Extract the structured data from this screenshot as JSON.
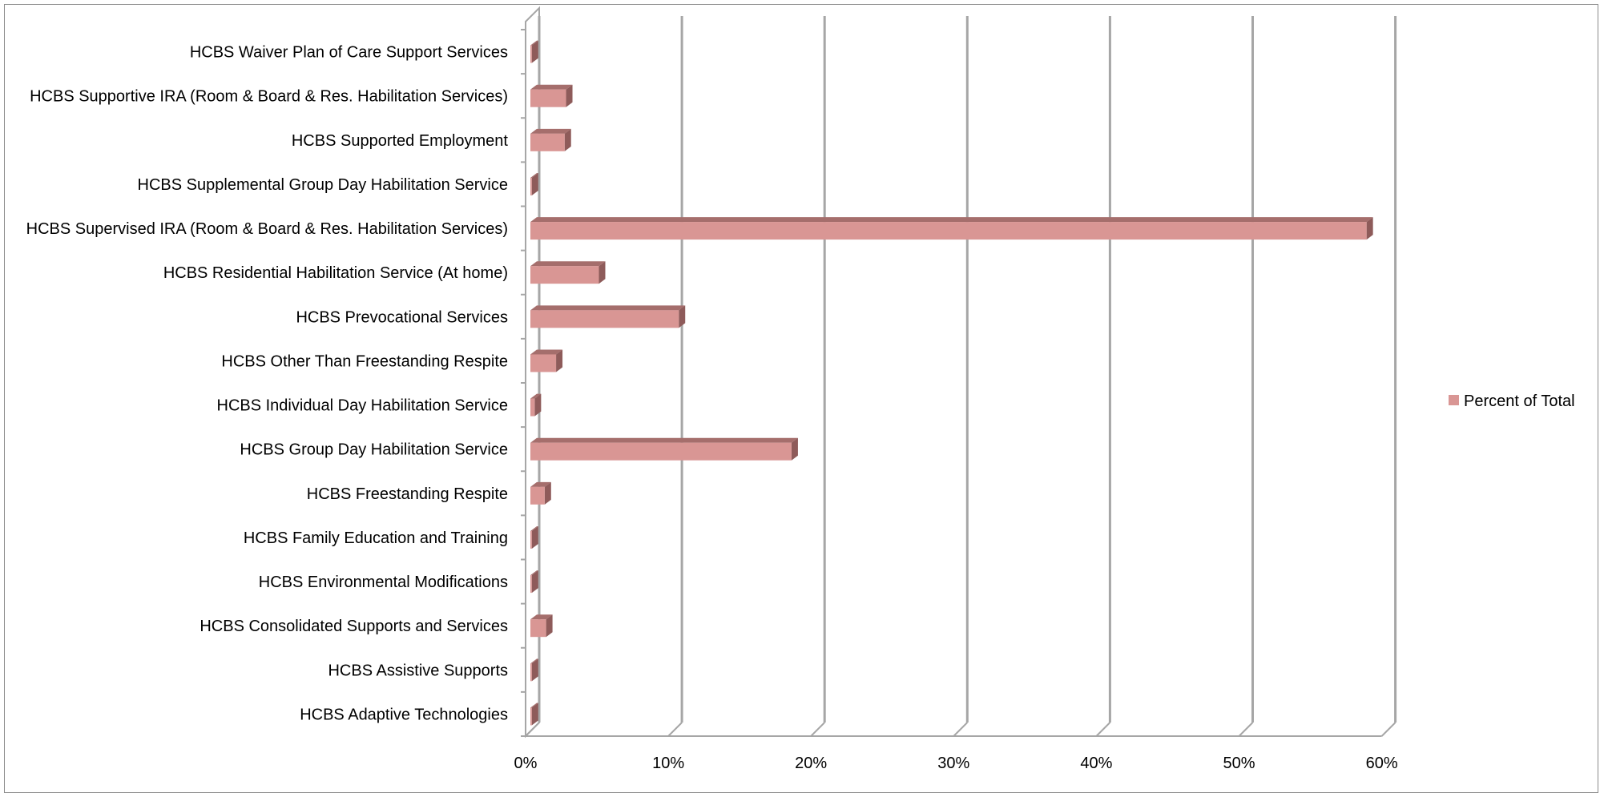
{
  "chart_data": {
    "type": "bar",
    "orientation": "horizontal",
    "style": "3d",
    "categories": [
      "HCBS Waiver Plan of Care Support Services",
      "HCBS Supportive IRA (Room & Board & Res. Habilitation Services)",
      "HCBS Supported Employment",
      "HCBS Supplemental Group Day Habilitation Service",
      "HCBS Supervised IRA (Room & Board & Res. Habilitation Services)",
      "HCBS Residential Habilitation Service (At home)",
      "HCBS Prevocational Services",
      "HCBS Other Than Freestanding Respite",
      "HCBS Individual Day Habilitation Service",
      "HCBS Group Day Habilitation Service",
      "HCBS Freestanding Respite",
      "HCBS Family Education and Training",
      "HCBS Environmental Modifications",
      "HCBS Consolidated Supports and Services",
      "HCBS Assistive Supports",
      "HCBS Adaptive Technologies"
    ],
    "series": [
      {
        "name": "Percent of Total",
        "values": [
          0.1,
          2.5,
          2.4,
          0.1,
          58.6,
          4.8,
          10.4,
          1.8,
          0.3,
          18.3,
          1.0,
          0.1,
          0.1,
          1.1,
          0.1,
          0.1
        ]
      }
    ],
    "x_ticks": [
      "0%",
      "10%",
      "20%",
      "30%",
      "40%",
      "50%",
      "60%"
    ],
    "xlim": [
      0,
      60
    ],
    "grid": "vertical",
    "legend_position": "right",
    "colors": {
      "bar_front": "#d99694",
      "bar_top": "#a56e6c",
      "bar_side": "#8e5b5a",
      "gridline": "#a6a6a6",
      "wall": "#8c8c8c"
    }
  }
}
